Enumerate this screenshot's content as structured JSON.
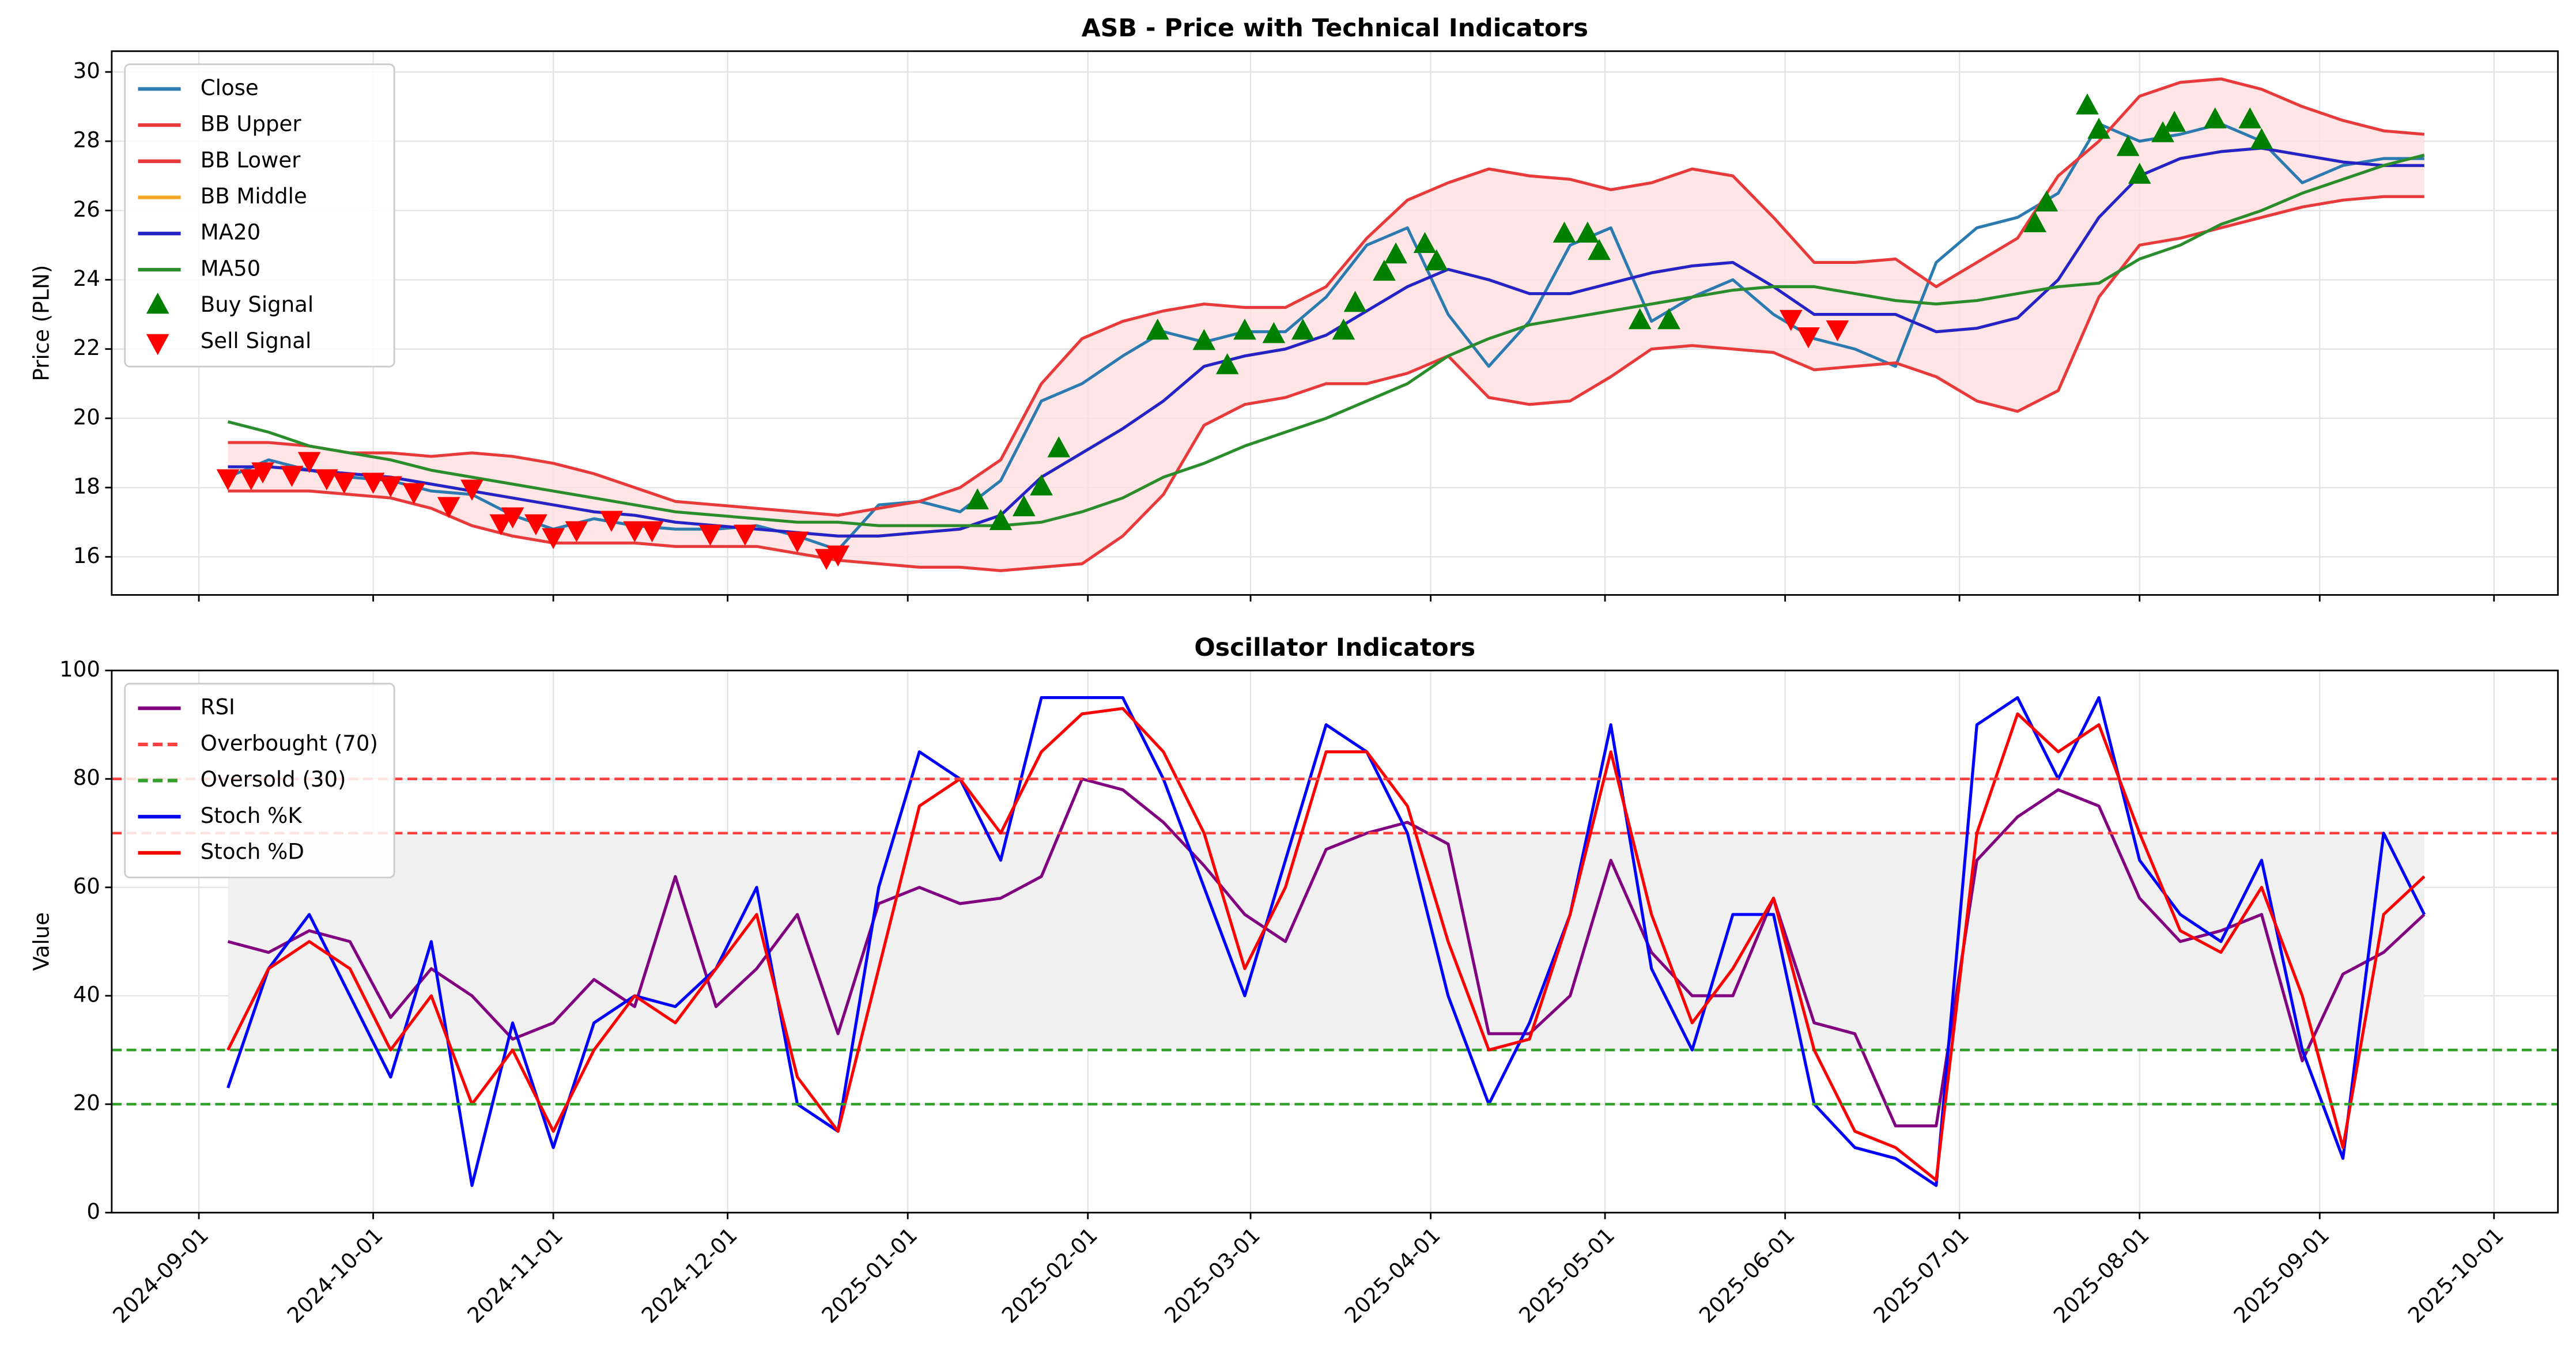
{
  "chart_data": [
    {
      "type": "line",
      "title": "ASB - Price with Technical Indicators",
      "ylabel": "Price (PLN)",
      "x": [
        "2024-09-06",
        "2024-09-13",
        "2024-09-20",
        "2024-09-27",
        "2024-10-04",
        "2024-10-11",
        "2024-10-18",
        "2024-10-25",
        "2024-11-01",
        "2024-11-08",
        "2024-11-15",
        "2024-11-22",
        "2024-11-29",
        "2024-12-06",
        "2024-12-13",
        "2024-12-20",
        "2024-12-27",
        "2025-01-03",
        "2025-01-10",
        "2025-01-17",
        "2025-01-24",
        "2025-01-31",
        "2025-02-07",
        "2025-02-14",
        "2025-02-21",
        "2025-02-28",
        "2025-03-07",
        "2025-03-14",
        "2025-03-21",
        "2025-03-28",
        "2025-04-04",
        "2025-04-11",
        "2025-04-18",
        "2025-04-25",
        "2025-05-02",
        "2025-05-09",
        "2025-05-16",
        "2025-05-23",
        "2025-05-30",
        "2025-06-06",
        "2025-06-13",
        "2025-06-20",
        "2025-06-27",
        "2025-07-04",
        "2025-07-11",
        "2025-07-18",
        "2025-07-25",
        "2025-08-01",
        "2025-08-08",
        "2025-08-15",
        "2025-08-22",
        "2025-08-29",
        "2025-09-05",
        "2025-09-12",
        "2025-09-19"
      ],
      "xlim": [
        "2024-08-17",
        "2025-10-12"
      ],
      "xticks": [
        "2024-09-01",
        "2024-10-01",
        "2024-11-01",
        "2024-12-01",
        "2025-01-01",
        "2025-02-01",
        "2025-03-01",
        "2025-04-01",
        "2025-05-01",
        "2025-06-01",
        "2025-07-01",
        "2025-08-01",
        "2025-09-01",
        "2025-10-01"
      ],
      "xticklabels": false,
      "ylim": [
        14.9,
        30.6
      ],
      "yticks": [
        16,
        18,
        20,
        22,
        24,
        26,
        28,
        30
      ],
      "grid": true,
      "legend": "upper left",
      "band_fill": "#ffdede",
      "series": [
        {
          "name": "Close",
          "color": "#2b7bb0",
          "values": [
            18.3,
            18.8,
            18.5,
            18.3,
            18.2,
            17.9,
            17.8,
            17.2,
            16.8,
            17.1,
            16.9,
            16.8,
            16.8,
            16.9,
            16.6,
            16.2,
            17.5,
            17.6,
            17.3,
            18.2,
            20.5,
            21.0,
            21.8,
            22.5,
            22.2,
            22.5,
            22.5,
            23.5,
            25.0,
            25.5,
            23.0,
            21.5,
            22.8,
            25.0,
            25.5,
            22.8,
            23.5,
            24.0,
            23.0,
            22.3,
            22.0,
            21.5,
            24.5,
            25.5,
            25.8,
            26.5,
            28.5,
            28.0,
            28.2,
            28.5,
            28.0,
            26.8,
            27.3,
            27.5,
            27.5
          ]
        },
        {
          "name": "BB Upper",
          "color": "#e83a3a",
          "values": [
            19.3,
            19.3,
            19.2,
            19.0,
            19.0,
            18.9,
            19.0,
            18.9,
            18.7,
            18.4,
            18.0,
            17.6,
            17.5,
            17.4,
            17.3,
            17.2,
            17.4,
            17.6,
            18.0,
            18.8,
            21.0,
            22.3,
            22.8,
            23.1,
            23.3,
            23.2,
            23.2,
            23.8,
            25.2,
            26.3,
            26.8,
            27.2,
            27.0,
            26.9,
            26.6,
            26.8,
            27.2,
            27.0,
            25.8,
            24.5,
            24.5,
            24.6,
            23.8,
            24.5,
            25.2,
            27.0,
            28.0,
            29.3,
            29.7,
            29.8,
            29.5,
            29.0,
            28.6,
            28.3,
            28.2
          ]
        },
        {
          "name": "BB Lower",
          "color": "#e83a3a",
          "values": [
            17.9,
            17.9,
            17.9,
            17.8,
            17.7,
            17.4,
            16.9,
            16.6,
            16.4,
            16.4,
            16.4,
            16.3,
            16.3,
            16.3,
            16.1,
            15.9,
            15.8,
            15.7,
            15.7,
            15.6,
            15.7,
            15.8,
            16.6,
            17.8,
            19.8,
            20.4,
            20.6,
            21.0,
            21.0,
            21.3,
            21.8,
            20.6,
            20.4,
            20.5,
            21.2,
            22.0,
            22.1,
            22.0,
            21.9,
            21.4,
            21.5,
            21.6,
            21.2,
            20.5,
            20.2,
            20.8,
            23.5,
            25.0,
            25.2,
            25.5,
            25.8,
            26.1,
            26.3,
            26.4,
            26.4
          ]
        },
        {
          "name": "BB Middle",
          "color": "#f5a623",
          "values": [
            18.6,
            18.6,
            18.5,
            18.4,
            18.3,
            18.1,
            17.9,
            17.7,
            17.5,
            17.3,
            17.2,
            17.0,
            16.9,
            16.8,
            16.7,
            16.6,
            16.6,
            16.7,
            16.8,
            17.2,
            18.3,
            19.0,
            19.7,
            20.5,
            21.5,
            21.8,
            22.0,
            22.4,
            23.1,
            23.8,
            24.3,
            24.0,
            23.6,
            23.6,
            23.9,
            24.2,
            24.4,
            24.5,
            23.8,
            23.0,
            23.0,
            23.0,
            22.5,
            22.6,
            22.9,
            24.0,
            25.8,
            27.0,
            27.5,
            27.7,
            27.8,
            27.6,
            27.4,
            27.3,
            27.3
          ]
        },
        {
          "name": "MA20",
          "color": "#2323c8",
          "values": [
            18.6,
            18.6,
            18.5,
            18.4,
            18.3,
            18.1,
            17.9,
            17.7,
            17.5,
            17.3,
            17.2,
            17.0,
            16.9,
            16.8,
            16.7,
            16.6,
            16.6,
            16.7,
            16.8,
            17.2,
            18.3,
            19.0,
            19.7,
            20.5,
            21.5,
            21.8,
            22.0,
            22.4,
            23.1,
            23.8,
            24.3,
            24.0,
            23.6,
            23.6,
            23.9,
            24.2,
            24.4,
            24.5,
            23.8,
            23.0,
            23.0,
            23.0,
            22.5,
            22.6,
            22.9,
            24.0,
            25.8,
            27.0,
            27.5,
            27.7,
            27.8,
            27.6,
            27.4,
            27.3,
            27.3
          ]
        },
        {
          "name": "MA50",
          "color": "#2a8c2a",
          "values": [
            19.9,
            19.6,
            19.2,
            19.0,
            18.8,
            18.5,
            18.3,
            18.1,
            17.9,
            17.7,
            17.5,
            17.3,
            17.2,
            17.1,
            17.0,
            17.0,
            16.9,
            16.9,
            16.9,
            16.9,
            17.0,
            17.3,
            17.7,
            18.3,
            18.7,
            19.2,
            19.6,
            20.0,
            20.5,
            21.0,
            21.8,
            22.3,
            22.7,
            22.9,
            23.1,
            23.3,
            23.5,
            23.7,
            23.8,
            23.8,
            23.6,
            23.4,
            23.3,
            23.4,
            23.6,
            23.8,
            23.9,
            24.6,
            25.0,
            25.6,
            26.0,
            26.5,
            26.9,
            27.3,
            27.6
          ]
        },
        {
          "name": "Buy Signal",
          "color": "#008000",
          "marker": "^",
          "x": [
            "2025-01-13",
            "2025-01-17",
            "2025-01-21",
            "2025-01-24",
            "2025-01-27",
            "2025-02-13",
            "2025-02-21",
            "2025-02-25",
            "2025-02-28",
            "2025-03-05",
            "2025-03-10",
            "2025-03-17",
            "2025-03-19",
            "2025-03-24",
            "2025-03-26",
            "2025-03-31",
            "2025-04-02",
            "2025-04-24",
            "2025-04-28",
            "2025-04-30",
            "2025-05-07",
            "2025-05-12",
            "2025-07-14",
            "2025-07-16",
            "2025-07-23",
            "2025-07-25",
            "2025-07-30",
            "2025-08-01",
            "2025-08-05",
            "2025-08-07",
            "2025-08-14",
            "2025-08-20",
            "2025-08-22"
          ],
          "values": [
            17.6,
            17.0,
            17.4,
            18.0,
            19.1,
            22.5,
            22.2,
            21.5,
            22.5,
            22.4,
            22.5,
            22.5,
            23.3,
            24.2,
            24.7,
            25.0,
            24.5,
            25.3,
            25.3,
            24.8,
            22.8,
            22.8,
            25.6,
            26.2,
            29.0,
            28.3,
            27.8,
            27.0,
            28.2,
            28.5,
            28.6,
            28.6,
            28.0
          ]
        },
        {
          "name": "Sell Signal",
          "color": "#ff0000",
          "marker": "v",
          "x": [
            "2024-09-06",
            "2024-09-10",
            "2024-09-12",
            "2024-09-17",
            "2024-09-20",
            "2024-09-23",
            "2024-09-26",
            "2024-10-01",
            "2024-10-04",
            "2024-10-08",
            "2024-10-14",
            "2024-10-18",
            "2024-10-23",
            "2024-10-25",
            "2024-10-29",
            "2024-11-01",
            "2024-11-05",
            "2024-11-11",
            "2024-11-15",
            "2024-11-18",
            "2024-11-28",
            "2024-12-04",
            "2024-12-13",
            "2024-12-18",
            "2024-12-20",
            "2025-06-02",
            "2025-06-05",
            "2025-06-10"
          ],
          "values": [
            18.3,
            18.3,
            18.5,
            18.4,
            18.8,
            18.3,
            18.2,
            18.2,
            18.1,
            17.9,
            17.5,
            18.0,
            17.0,
            17.2,
            17.0,
            16.6,
            16.8,
            17.1,
            16.8,
            16.8,
            16.7,
            16.7,
            16.5,
            16.0,
            16.1,
            22.9,
            22.4,
            22.6
          ]
        }
      ]
    },
    {
      "type": "line",
      "title": "Oscillator Indicators",
      "ylabel": "Value",
      "x": [
        "2024-09-06",
        "2024-09-13",
        "2024-09-20",
        "2024-09-27",
        "2024-10-04",
        "2024-10-11",
        "2024-10-18",
        "2024-10-25",
        "2024-11-01",
        "2024-11-08",
        "2024-11-15",
        "2024-11-22",
        "2024-11-29",
        "2024-12-06",
        "2024-12-13",
        "2024-12-20",
        "2024-12-27",
        "2025-01-03",
        "2025-01-10",
        "2025-01-17",
        "2025-01-24",
        "2025-01-31",
        "2025-02-07",
        "2025-02-14",
        "2025-02-21",
        "2025-02-28",
        "2025-03-07",
        "2025-03-14",
        "2025-03-21",
        "2025-03-28",
        "2025-04-04",
        "2025-04-11",
        "2025-04-18",
        "2025-04-25",
        "2025-05-02",
        "2025-05-09",
        "2025-05-16",
        "2025-05-23",
        "2025-05-30",
        "2025-06-06",
        "2025-06-13",
        "2025-06-20",
        "2025-06-27",
        "2025-07-04",
        "2025-07-11",
        "2025-07-18",
        "2025-07-25",
        "2025-08-01",
        "2025-08-08",
        "2025-08-15",
        "2025-08-22",
        "2025-08-29",
        "2025-09-05",
        "2025-09-12",
        "2025-09-19"
      ],
      "xlim": [
        "2024-08-17",
        "2025-10-12"
      ],
      "xticks": [
        "2024-09-01",
        "2024-10-01",
        "2024-11-01",
        "2024-12-01",
        "2025-01-01",
        "2025-02-01",
        "2025-03-01",
        "2025-04-01",
        "2025-05-01",
        "2025-06-01",
        "2025-07-01",
        "2025-08-01",
        "2025-09-01",
        "2025-10-01"
      ],
      "xticklabels": true,
      "ylim": [
        0,
        100
      ],
      "yticks": [
        0,
        20,
        40,
        60,
        80,
        100
      ],
      "grid": true,
      "legend": "upper left",
      "shade": {
        "range": [
          30,
          70
        ],
        "color": "#f0f0f0"
      },
      "series": [
        {
          "name": "RSI",
          "color": "#800080",
          "values": [
            50,
            48,
            52,
            50,
            36,
            45,
            40,
            32,
            35,
            43,
            38,
            62,
            38,
            45,
            55,
            33,
            57,
            60,
            57,
            58,
            62,
            80,
            78,
            72,
            64,
            55,
            50,
            67,
            70,
            72,
            68,
            33,
            33,
            40,
            65,
            48,
            40,
            40,
            58,
            35,
            33,
            16,
            16,
            65,
            73,
            78,
            75,
            58,
            50,
            52,
            55,
            28,
            44,
            48,
            55
          ]
        },
        {
          "name": "Overbought (70)",
          "color": "#ff4040",
          "style": "dashed",
          "value": 70
        },
        {
          "name": "Oversold (30)",
          "color": "#33a02c",
          "style": "dashed",
          "value": 30
        },
        {
          "name": "Stoch %K",
          "color": "#0000ff",
          "values": [
            23,
            45,
            55,
            40,
            25,
            50,
            5,
            35,
            12,
            35,
            40,
            38,
            45,
            60,
            20,
            15,
            60,
            85,
            80,
            65,
            95,
            95,
            95,
            80,
            60,
            40,
            65,
            90,
            85,
            70,
            40,
            20,
            35,
            55,
            90,
            45,
            30,
            55,
            55,
            20,
            12,
            10,
            5,
            90,
            95,
            80,
            95,
            65,
            55,
            50,
            65,
            30,
            10,
            70,
            55
          ]
        },
        {
          "name": "Stoch %D",
          "color": "#ff0000",
          "values": [
            30,
            45,
            50,
            45,
            30,
            40,
            20,
            30,
            15,
            30,
            40,
            35,
            45,
            55,
            25,
            15,
            45,
            75,
            80,
            70,
            85,
            92,
            93,
            85,
            70,
            45,
            60,
            85,
            85,
            75,
            50,
            30,
            32,
            55,
            85,
            55,
            35,
            45,
            58,
            30,
            15,
            12,
            6,
            70,
            92,
            85,
            90,
            70,
            52,
            48,
            60,
            40,
            12,
            55,
            62
          ]
        },
        {
          "color": "#ff4040",
          "style": "dashed",
          "value": 80
        },
        {
          "color": "#33a02c",
          "style": "dashed",
          "value": 20
        }
      ]
    }
  ]
}
